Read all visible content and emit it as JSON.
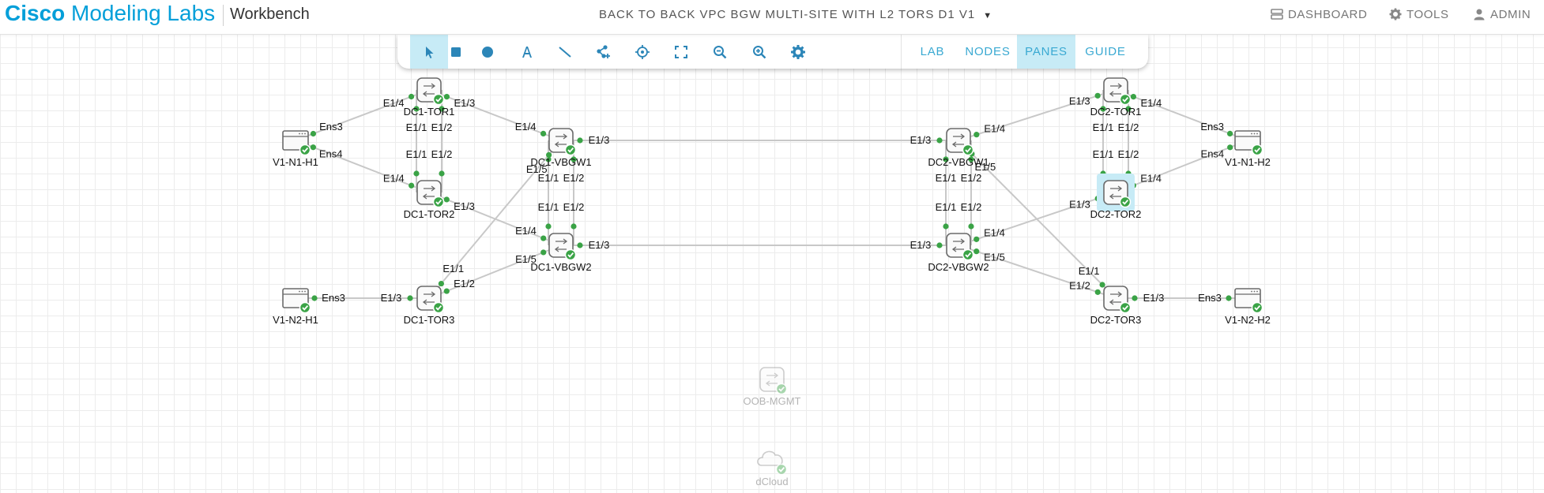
{
  "header": {
    "brand_strong": "Cisco",
    "brand_rest": " Modeling Labs",
    "section": "Workbench",
    "lab_title": "BACK TO BACK VPC BGW MULTI-SITE WITH L2 TORS D1 V1",
    "dashboard": "DASHBOARD",
    "tools": "TOOLS",
    "admin": "ADMIN"
  },
  "toolbar": {
    "tools": [
      {
        "id": "select",
        "icon": "pointer-icon"
      },
      {
        "id": "rectangle",
        "icon": "square-icon"
      },
      {
        "id": "ellipse",
        "icon": "circle-icon"
      },
      {
        "id": "text",
        "icon": "text-icon"
      },
      {
        "id": "line",
        "icon": "line-icon"
      },
      {
        "id": "add-node",
        "icon": "add-node-icon"
      },
      {
        "id": "center",
        "icon": "crosshair-icon"
      },
      {
        "id": "fit",
        "icon": "fit-screen-icon"
      },
      {
        "id": "zoom-out",
        "icon": "zoom-out-icon"
      },
      {
        "id": "zoom-in",
        "icon": "zoom-in-icon"
      },
      {
        "id": "settings",
        "icon": "gear-icon"
      }
    ],
    "tabs": {
      "lab": "LAB",
      "nodes": "NODES",
      "panes": "PANES",
      "guide": "GUIDE"
    },
    "active_tab": "PANES"
  },
  "colors": {
    "accent": "#049fd9",
    "ok": "#3aa346",
    "link": "#c8c8c8",
    "active": "#c7ebf6"
  },
  "topology": {
    "nodes": {
      "dc1tor1": {
        "label": "DC1-TOR1",
        "type": "switch",
        "state": "booted"
      },
      "dc1tor2": {
        "label": "DC1-TOR2",
        "type": "switch",
        "state": "booted"
      },
      "dc1tor3": {
        "label": "DC1-TOR3",
        "type": "switch",
        "state": "booted"
      },
      "dc1vbgw1": {
        "label": "DC1-VBGW1",
        "type": "switch",
        "state": "booted"
      },
      "dc1vbgw2": {
        "label": "DC1-VBGW2",
        "type": "switch",
        "state": "booted"
      },
      "dc2vbgw1": {
        "label": "DC2-VBGW1",
        "type": "switch",
        "state": "booted"
      },
      "dc2vbgw2": {
        "label": "DC2-VBGW2",
        "type": "switch",
        "state": "booted"
      },
      "dc2tor1": {
        "label": "DC2-TOR1",
        "type": "switch",
        "state": "booted"
      },
      "dc2tor2": {
        "label": "DC2-TOR2",
        "type": "switch",
        "state": "booted",
        "selected": true
      },
      "dc2tor3": {
        "label": "DC2-TOR3",
        "type": "switch",
        "state": "booted"
      },
      "v1n1h1": {
        "label": "V1-N1-H1",
        "type": "host",
        "state": "booted"
      },
      "v1n2h1": {
        "label": "V1-N2-H1",
        "type": "host",
        "state": "booted"
      },
      "v1n1h2": {
        "label": "V1-N1-H2",
        "type": "host",
        "state": "booted"
      },
      "v1n2h2": {
        "label": "V1-N2-H2",
        "type": "host",
        "state": "booted"
      },
      "oobmgmt": {
        "label": "OOB-MGMT",
        "type": "switch",
        "state": "off"
      },
      "dcloud": {
        "label": "dCloud",
        "type": "cloud",
        "state": "off"
      }
    },
    "links": [
      {
        "a": "v1n1h1",
        "b": "dc1tor1",
        "ia": "Ens3",
        "ib": "E1/4"
      },
      {
        "a": "v1n1h1",
        "b": "dc1tor2",
        "ia": "Ens4",
        "ib": "E1/4"
      },
      {
        "a": "dc1tor1",
        "b": "dc1tor2",
        "ia": "E1/2",
        "ib": "E1/2"
      },
      {
        "a": "dc1tor1",
        "b": "dc1tor2",
        "ia": "E1/1",
        "ib": "E1/1"
      },
      {
        "a": "dc1tor1",
        "b": "dc1vbgw1",
        "ia": "E1/3",
        "ib": "E1/4"
      },
      {
        "a": "dc1tor2",
        "b": "dc1vbgw2",
        "ia": "E1/3",
        "ib": "E1/4"
      },
      {
        "a": "dc1vbgw1",
        "b": "dc1vbgw2",
        "ia": "E1/2",
        "ib": "E1/2"
      },
      {
        "a": "dc1vbgw1",
        "b": "dc1vbgw2",
        "ia": "E1/1",
        "ib": "E1/1"
      },
      {
        "a": "dc1tor3",
        "b": "dc1vbgw1",
        "ia": "E1/1",
        "ib": "E1/5"
      },
      {
        "a": "dc1tor3",
        "b": "dc1vbgw2",
        "ia": "E1/2",
        "ib": "E1/5"
      },
      {
        "a": "v1n2h1",
        "b": "dc1tor3",
        "ia": "Ens3",
        "ib": "E1/3"
      },
      {
        "a": "dc1vbgw1",
        "b": "dc2vbgw1",
        "ia": "E1/3",
        "ib": "E1/3"
      },
      {
        "a": "dc1vbgw2",
        "b": "dc2vbgw2",
        "ia": "E1/3",
        "ib": "E1/3"
      },
      {
        "a": "dc2vbgw1",
        "b": "dc2tor1",
        "ia": "E1/4",
        "ib": "E1/3"
      },
      {
        "a": "dc2vbgw2",
        "b": "dc2tor2",
        "ia": "E1/4",
        "ib": "E1/3"
      },
      {
        "a": "dc2vbgw1",
        "b": "dc2vbgw2",
        "ia": "E1/2",
        "ib": "E1/2"
      },
      {
        "a": "dc2vbgw1",
        "b": "dc2vbgw2",
        "ia": "E1/1",
        "ib": "E1/1"
      },
      {
        "a": "dc2vbgw1",
        "b": "dc2tor3",
        "ia": "E1/5",
        "ib": "E1/1"
      },
      {
        "a": "dc2vbgw2",
        "b": "dc2tor3",
        "ia": "E1/5",
        "ib": "E1/2"
      },
      {
        "a": "dc2tor1",
        "b": "dc2tor2",
        "ia": "E1/2",
        "ib": "E1/2"
      },
      {
        "a": "dc2tor1",
        "b": "dc2tor2",
        "ia": "E1/1",
        "ib": "E1/1"
      },
      {
        "a": "dc2tor1",
        "b": "v1n1h2",
        "ia": "E1/4",
        "ib": "Ens3"
      },
      {
        "a": "dc2tor2",
        "b": "v1n1h2",
        "ia": "E1/4",
        "ib": "Ens4"
      },
      {
        "a": "dc2tor3",
        "b": "v1n2h2",
        "ia": "E1/3",
        "ib": "Ens3"
      }
    ]
  }
}
